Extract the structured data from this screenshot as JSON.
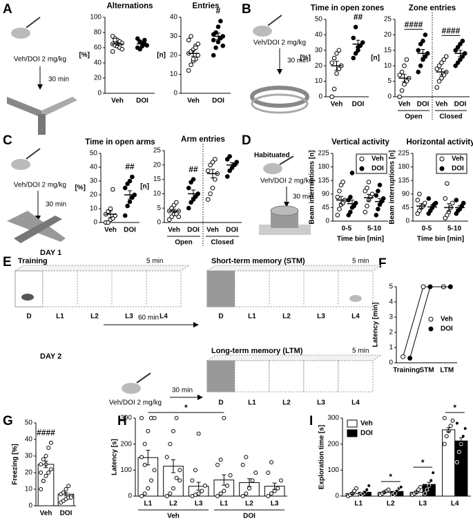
{
  "schematic": {
    "letters": [
      "A",
      "B",
      "C",
      "D",
      "E",
      "F",
      "G",
      "H",
      "I"
    ],
    "dose": "Veh/DOI 2 mg/kg",
    "delay": "30 min",
    "habituated": "Habituated",
    "day1": "DAY 1",
    "training": "Training",
    "duration": "5 min",
    "stm": "Short-term memory (STM)",
    "ltm": "Long-term memory (LTM)",
    "interval": "60 min",
    "day2": "DAY 2",
    "zones": [
      "D",
      "L1",
      "L2",
      "L3",
      "L4"
    ]
  },
  "chart_data": [
    {
      "type": "dot",
      "title": "Alternations",
      "ylabel": "[%]",
      "ylim": [
        0,
        100
      ],
      "yticks": [
        0,
        20,
        40,
        60,
        80,
        100
      ],
      "categories": [
        "Veh",
        "DOI"
      ],
      "markers": [
        "open",
        "filled"
      ],
      "points": [
        [
          75,
          72,
          70,
          68,
          66,
          65,
          63,
          62,
          60,
          58,
          55,
          70
        ],
        [
          72,
          68,
          66,
          65,
          63,
          60,
          58,
          62,
          70
        ]
      ],
      "means": [
        65,
        65
      ],
      "sems": [
        2,
        2
      ]
    },
    {
      "type": "dot",
      "title": "Entries",
      "ylabel": "[n]",
      "ylim": [
        0,
        40
      ],
      "yticks": [
        0,
        10,
        20,
        30,
        40
      ],
      "categories": [
        "Veh",
        "DOI"
      ],
      "markers": [
        "open",
        "filled"
      ],
      "points": [
        [
          12,
          15,
          17,
          18,
          20,
          21,
          22,
          23,
          25,
          26,
          28,
          30,
          18,
          24
        ],
        [
          20,
          24,
          27,
          29,
          30,
          31,
          32,
          35,
          38,
          25,
          28
        ]
      ],
      "means": [
        21,
        30
      ],
      "sems": [
        1.5,
        1.7
      ],
      "annotations": [
        {
          "text": "#",
          "categories": [
            1
          ]
        }
      ]
    },
    {
      "type": "dot",
      "title": "Time in open zones",
      "ylabel": "[%]",
      "ylim": [
        0,
        50
      ],
      "yticks": [
        0,
        10,
        20,
        30,
        40,
        50
      ],
      "categories": [
        "Veh",
        "DOI"
      ],
      "markers": [
        "open",
        "filled"
      ],
      "points": [
        [
          0,
          5,
          15,
          18,
          20,
          22,
          25,
          28,
          30,
          20
        ],
        [
          25,
          28,
          30,
          33,
          35,
          38,
          45,
          32
        ]
      ],
      "means": [
        20,
        34
      ],
      "sems": [
        3,
        2.5
      ],
      "annotations": [
        {
          "text": "##",
          "categories": [
            1
          ]
        }
      ]
    },
    {
      "type": "dot",
      "title": "Zone entries",
      "ylabel": "[n]",
      "ylim": [
        0,
        25
      ],
      "yticks": [
        0,
        5,
        10,
        15,
        20,
        25
      ],
      "categories": [
        "Veh",
        "DOI",
        "Veh",
        "DOI"
      ],
      "markers": [
        "open",
        "filled",
        "open",
        "filled"
      ],
      "groups": [
        "Open",
        "Closed"
      ],
      "divider": true,
      "points": [
        [
          0,
          2,
          4,
          5,
          6,
          7,
          8,
          10,
          12
        ],
        [
          8,
          10,
          12,
          13,
          14,
          15,
          17,
          18,
          20
        ],
        [
          3,
          5,
          6,
          7,
          8,
          9,
          10,
          11,
          12,
          13
        ],
        [
          10,
          11,
          12,
          13,
          14,
          15,
          16,
          17,
          18
        ]
      ],
      "means": [
        6,
        14,
        8,
        14
      ],
      "sems": [
        1.2,
        1.3,
        1,
        1
      ],
      "annotations": [
        {
          "text": "####",
          "categories": [
            0,
            1
          ],
          "bracket": true
        },
        {
          "text": "####",
          "categories": [
            2,
            3
          ],
          "bracket": true
        }
      ]
    },
    {
      "type": "dot",
      "title": "Time in open arms",
      "ylabel": "[%]",
      "ylim": [
        0,
        50
      ],
      "yticks": [
        0,
        10,
        20,
        30,
        40,
        50
      ],
      "categories": [
        "Veh",
        "DOI"
      ],
      "markers": [
        "open",
        "filled"
      ],
      "points": [
        [
          0,
          0,
          2,
          3,
          5,
          6,
          8,
          10,
          24
        ],
        [
          5,
          12,
          15,
          18,
          20,
          25,
          28,
          30,
          33
        ]
      ],
      "means": [
        6,
        20
      ],
      "sems": [
        2.5,
        3
      ],
      "annotations": [
        {
          "text": "##",
          "categories": [
            1
          ]
        }
      ]
    },
    {
      "type": "dot",
      "title": "Arm entries",
      "ylabel": "[n]",
      "ylim": [
        0,
        25
      ],
      "yticks": [
        0,
        5,
        10,
        15,
        20,
        25
      ],
      "categories": [
        "Veh",
        "DOI",
        "Veh",
        "DOI"
      ],
      "markers": [
        "open",
        "filled",
        "open",
        "filled"
      ],
      "groups": [
        "Open",
        "Closed"
      ],
      "divider": true,
      "points": [
        [
          1,
          2,
          3,
          3,
          4,
          4,
          5,
          6,
          7,
          2
        ],
        [
          5,
          7,
          8,
          9,
          10,
          12,
          14,
          15
        ],
        [
          8,
          10,
          12,
          15,
          17,
          18,
          20,
          21,
          22
        ],
        [
          16,
          18,
          19,
          20,
          21,
          22,
          23
        ]
      ],
      "means": [
        4,
        10,
        17,
        20
      ],
      "sems": [
        0.6,
        1.3,
        1.5,
        0.8
      ],
      "annotations": [
        {
          "text": "##",
          "categories": [
            1
          ]
        }
      ]
    },
    {
      "type": "grouped_dot",
      "title": "Vertical activity",
      "ylabel": "Beam interruptions [n]",
      "xlabel": "Time bin [min]",
      "ylim": [
        0,
        225
      ],
      "yticks": [
        0,
        45,
        90,
        135,
        180,
        225
      ],
      "categories": [
        "0-5",
        "5-10"
      ],
      "legend": "upper right",
      "series": [
        {
          "name": "Veh",
          "marker": "open",
          "points": [
            [
              20,
              40,
              55,
              60,
              70,
              80,
              100,
              120,
              130
            ],
            [
              30,
              50,
              70,
              80,
              90,
              100,
              110,
              130
            ]
          ],
          "means": [
            70,
            78
          ],
          "sems": [
            12,
            11
          ]
        },
        {
          "name": "DOI",
          "marker": "filled",
          "points": [
            [
              20,
              30,
              45,
              50,
              60,
              70,
              80,
              160
            ],
            [
              20,
              40,
              55,
              65,
              75,
              85,
              100,
              120
            ]
          ],
          "means": [
            58,
            65
          ],
          "sems": [
            12,
            10
          ]
        }
      ]
    },
    {
      "type": "grouped_dot",
      "title": "Horizontal activity",
      "ylabel": "Beam interruptions [n]",
      "xlabel": "Time bin [min]",
      "ylim": [
        0,
        225
      ],
      "yticks": [
        0,
        45,
        90,
        135,
        180,
        225
      ],
      "categories": [
        "0-5",
        "5-10"
      ],
      "legend": "upper right",
      "series": [
        {
          "name": "Veh",
          "marker": "open",
          "points": [
            [
              25,
              35,
              45,
              50,
              60,
              70,
              90
            ],
            [
              10,
              20,
              30,
              45,
              60,
              75,
              125
            ]
          ],
          "means": [
            50,
            45
          ],
          "sems": [
            8,
            13
          ]
        },
        {
          "name": "DOI",
          "marker": "filled",
          "points": [
            [
              25,
              35,
              45,
              55,
              60,
              75
            ],
            [
              25,
              35,
              40,
              50,
              60,
              70
            ]
          ],
          "means": [
            47,
            45
          ],
          "sems": [
            7,
            6
          ]
        }
      ]
    },
    {
      "type": "line",
      "ylabel": "Latency [min]",
      "ylim": [
        0,
        5
      ],
      "yticks": [
        0,
        1,
        2,
        3,
        4,
        5
      ],
      "categories": [
        "Training",
        "STM",
        "LTM"
      ],
      "legend": "center right",
      "series": [
        {
          "name": "Veh",
          "marker": "open",
          "values": [
            0.4,
            5,
            5
          ]
        },
        {
          "name": "DOI",
          "marker": "filled",
          "values": [
            0.3,
            5,
            5
          ]
        }
      ]
    },
    {
      "type": "bar",
      "ylabel": "Freezing [%]",
      "ylim": [
        0,
        50
      ],
      "yticks": [
        0,
        10,
        20,
        30,
        40,
        50
      ],
      "categories": [
        "Veh",
        "DOI"
      ],
      "series": [
        {
          "color": "#ffffff",
          "values": [
            25,
            7
          ],
          "sems": [
            2,
            1
          ],
          "points": [
            [
              10,
              15,
              18,
              20,
              22,
              25,
              28,
              30,
              35,
              38,
              20,
              15,
              25
            ],
            [
              2,
              3,
              4,
              5,
              6,
              7,
              8,
              10,
              12,
              5
            ]
          ]
        }
      ],
      "annotations": [
        {
          "text": "####",
          "categories": [
            0
          ]
        }
      ]
    },
    {
      "type": "bar",
      "ylabel": "Latency [s]",
      "ylim": [
        0,
        300
      ],
      "yticks": [
        0,
        100,
        200,
        300
      ],
      "categories": [
        "L1",
        "L2",
        "L3",
        "L1",
        "L2",
        "L3"
      ],
      "groups": [
        "Veh",
        "DOI"
      ],
      "series": [
        {
          "color": "#ffffff",
          "values": [
            148,
            115,
            38,
            62,
            52,
            38
          ],
          "sems": [
            28,
            25,
            15,
            20,
            15,
            12
          ],
          "points": [
            [
              0,
              10,
              30,
              60,
              100,
              150,
              200,
              250,
              300,
              300,
              300,
              120
            ],
            [
              0,
              10,
              30,
              70,
              100,
              150,
              200,
              250,
              300,
              60
            ],
            [
              0,
              5,
              10,
              20,
              40,
              60,
              100,
              240
            ],
            [
              0,
              10,
              20,
              40,
              80,
              120,
              140,
              300
            ],
            [
              0,
              10,
              30,
              60,
              90,
              120,
              150
            ],
            [
              0,
              10,
              20,
              30,
              60,
              90,
              130
            ]
          ]
        }
      ],
      "annotations": [
        {
          "text": "*",
          "categories": [
            0,
            3
          ],
          "bracket": true
        }
      ]
    },
    {
      "type": "bar",
      "ylabel": "Exploration time [s]",
      "ylim": [
        0,
        300
      ],
      "yticks": [
        0,
        100,
        200,
        300
      ],
      "categories": [
        "L1",
        "L2",
        "L3",
        "L4"
      ],
      "legend": "upper left",
      "series": [
        {
          "name": "Veh",
          "color": "#ffffff",
          "values": [
            10,
            15,
            15,
            255
          ],
          "sems": [
            3,
            3,
            4,
            8
          ],
          "points": [
            [
              0,
              5,
              10,
              20,
              30
            ],
            [
              5,
              10,
              15,
              20,
              25
            ],
            [
              5,
              10,
              15,
              25,
              35
            ],
            [
              200,
              230,
              250,
              270,
              290,
              300
            ]
          ]
        },
        {
          "name": "DOI",
          "color": "#000000",
          "values": [
            15,
            18,
            45,
            212
          ],
          "sems": [
            4,
            3,
            8,
            12
          ],
          "points": [
            [
              5,
              10,
              15,
              25,
              40
            ],
            [
              5,
              10,
              20,
              30,
              35
            ],
            [
              10,
              25,
              40,
              60,
              90
            ],
            [
              130,
              170,
              200,
              230,
              260,
              280
            ]
          ]
        }
      ],
      "annotations": [
        {
          "text": "*",
          "categories": [
            1
          ],
          "bracket": true
        },
        {
          "text": "*",
          "categories": [
            2
          ],
          "bracket": true
        },
        {
          "text": "*",
          "categories": [
            3
          ],
          "bracket": true
        }
      ]
    }
  ]
}
